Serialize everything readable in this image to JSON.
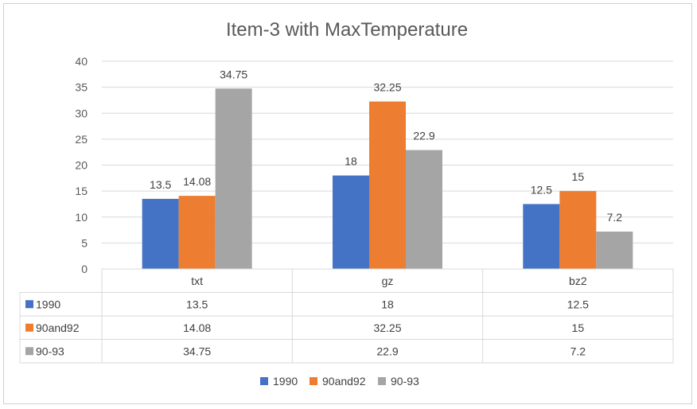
{
  "chart_data": {
    "type": "bar",
    "title": "Item-3 with MaxTemperature",
    "categories": [
      "txt",
      "gz",
      "bz2"
    ],
    "series": [
      {
        "name": "1990",
        "values": [
          13.5,
          18,
          12.5
        ],
        "labels": [
          "13.5",
          "18",
          "12.5"
        ],
        "color": "#4472C4"
      },
      {
        "name": "90and92",
        "values": [
          14.08,
          32.25,
          15
        ],
        "labels": [
          "14.08",
          "32.25",
          "15"
        ],
        "color": "#ED7D31"
      },
      {
        "name": "90-93",
        "values": [
          34.75,
          22.9,
          7.2
        ],
        "labels": [
          "34.75",
          "22.9",
          "7.2"
        ],
        "color": "#A5A5A5"
      }
    ],
    "ylim": [
      0,
      40
    ],
    "yticks": [
      0,
      5,
      10,
      15,
      20,
      25,
      30,
      35,
      40
    ],
    "grid": true,
    "legend": "bottom",
    "data_table": true
  }
}
